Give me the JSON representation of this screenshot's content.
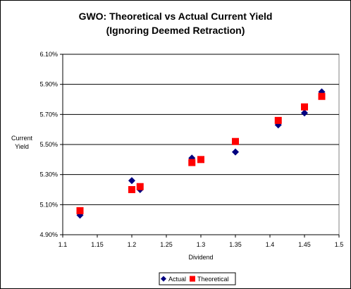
{
  "chart_data": {
    "type": "scatter",
    "title_lines": [
      "GWO: Theoretical vs Actual Current Yield",
      "(Ignoring Deemed Retraction)"
    ],
    "xlabel": "Dividend",
    "ylabel_lines": [
      "Current",
      "Yield"
    ],
    "xlim": [
      1.1,
      1.5
    ],
    "ylim": [
      4.9,
      6.1
    ],
    "x_ticks": [
      "1.1",
      "1.15",
      "1.2",
      "1.25",
      "1.3",
      "1.35",
      "1.4",
      "1.45",
      "1.5"
    ],
    "y_ticks": [
      "4.90%",
      "5.10%",
      "5.30%",
      "5.50%",
      "5.70%",
      "5.90%",
      "6.10%"
    ],
    "grid": "horizontal major",
    "legend_position": "bottom",
    "series": [
      {
        "name": "Actual",
        "marker": "diamond",
        "color": "#000080",
        "points": [
          {
            "x": 1.125,
            "y": 5.03
          },
          {
            "x": 1.2,
            "y": 5.26
          },
          {
            "x": 1.212,
            "y": 5.2
          },
          {
            "x": 1.287,
            "y": 5.41
          },
          {
            "x": 1.3,
            "y": 5.4
          },
          {
            "x": 1.35,
            "y": 5.45
          },
          {
            "x": 1.412,
            "y": 5.63
          },
          {
            "x": 1.45,
            "y": 5.71
          },
          {
            "x": 1.475,
            "y": 5.85
          }
        ]
      },
      {
        "name": "Theoretical",
        "marker": "square",
        "color": "#ff0000",
        "points": [
          {
            "x": 1.125,
            "y": 5.06
          },
          {
            "x": 1.2,
            "y": 5.2
          },
          {
            "x": 1.212,
            "y": 5.22
          },
          {
            "x": 1.287,
            "y": 5.38
          },
          {
            "x": 1.3,
            "y": 5.4
          },
          {
            "x": 1.35,
            "y": 5.52
          },
          {
            "x": 1.412,
            "y": 5.66
          },
          {
            "x": 1.45,
            "y": 5.75
          },
          {
            "x": 1.475,
            "y": 5.82
          }
        ]
      }
    ]
  }
}
